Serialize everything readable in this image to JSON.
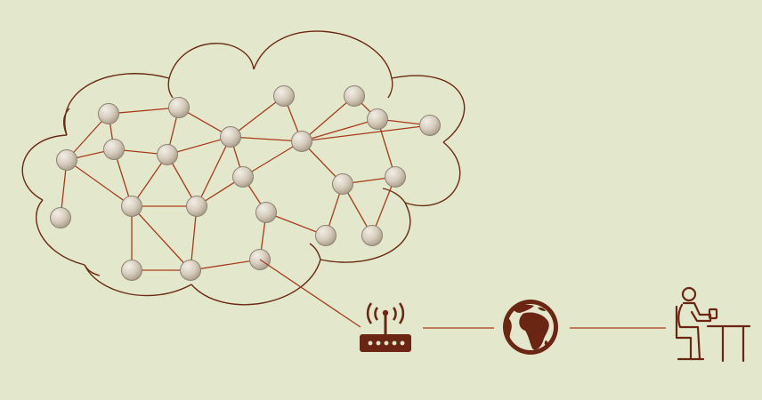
{
  "diagram": {
    "colors": {
      "background": "#e3e8cc",
      "line": "#a83a1c",
      "cloud_outline": "#6b2a14",
      "icon": "#6b2613",
      "node_fill_light": "#f2eee6",
      "node_fill_dark": "#b9ad9c",
      "node_stroke": "#8d8272"
    },
    "icons": [
      "cloud-outline",
      "wifi-router-icon",
      "globe-icon",
      "person-at-desk-icon"
    ]
  }
}
